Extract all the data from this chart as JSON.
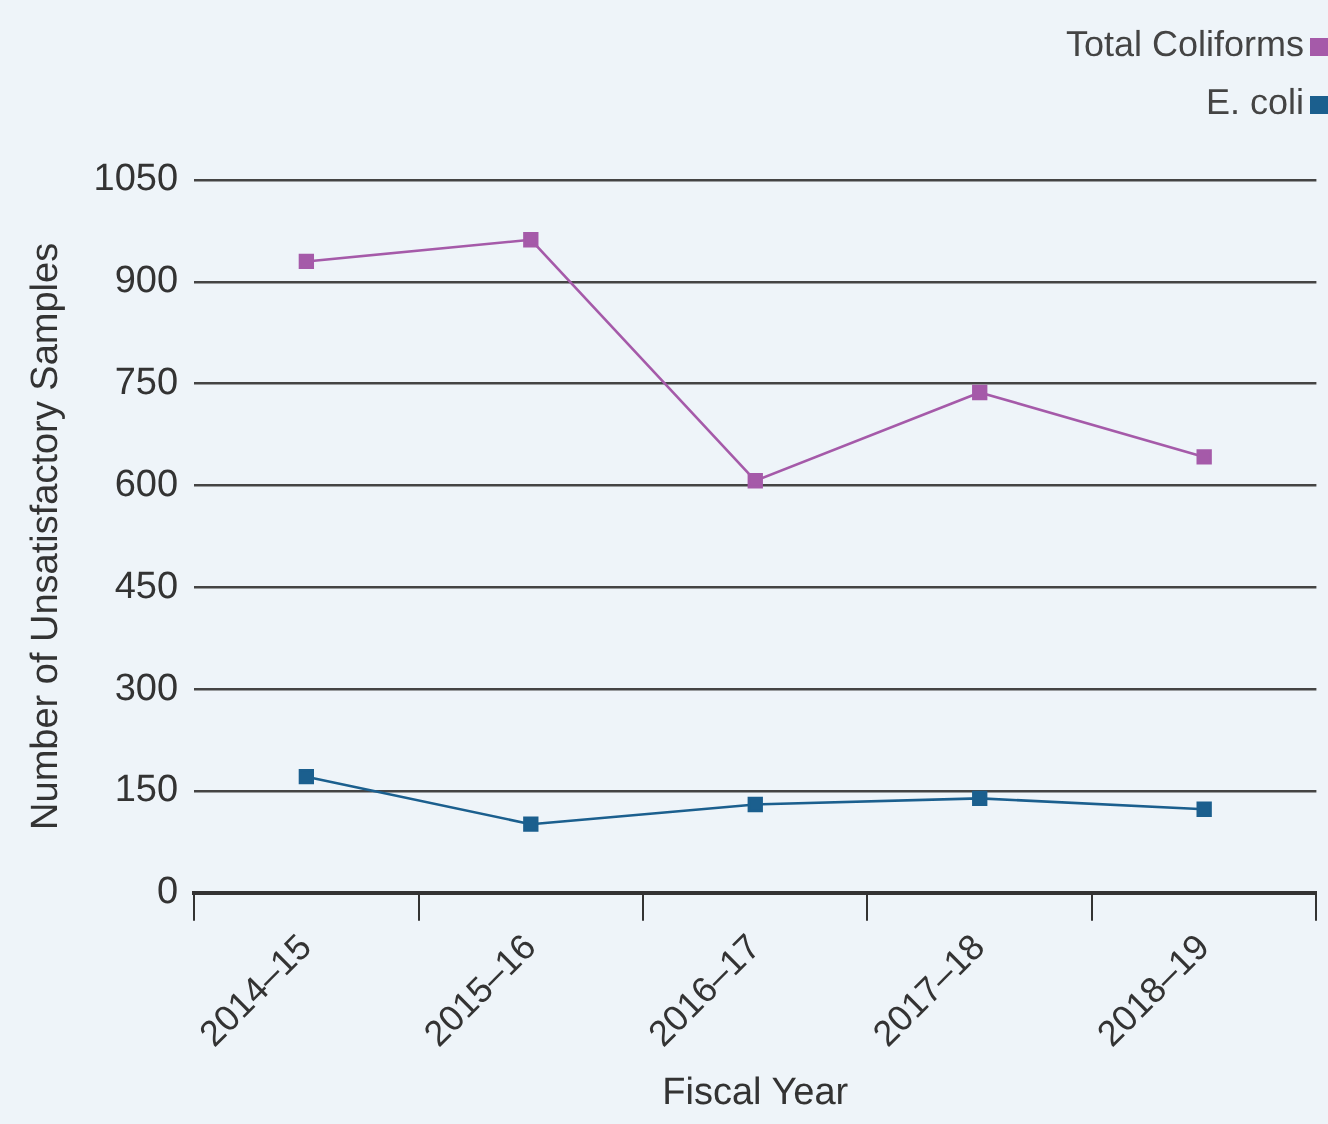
{
  "chart_data": {
    "type": "line",
    "xlabel": "Fiscal Year",
    "ylabel": "Number of Unsatisfactory Samples",
    "categories": [
      "2014–15",
      "2015–16",
      "2016–17",
      "2017–18",
      "2018–19"
    ],
    "series": [
      {
        "name": "Total Coliforms",
        "color": "#a55aa9",
        "values": [
          930,
          962,
          607,
          737,
          642
        ]
      },
      {
        "name": "E. coli",
        "color": "#1b5f8e",
        "values": [
          171,
          101,
          130,
          139,
          123
        ]
      }
    ],
    "ylim": [
      0,
      1050
    ],
    "yticks": [
      0,
      150,
      300,
      450,
      600,
      750,
      900,
      1050
    ],
    "grid": "y",
    "legend": "top right",
    "marker": "square",
    "line_style": "solid"
  }
}
